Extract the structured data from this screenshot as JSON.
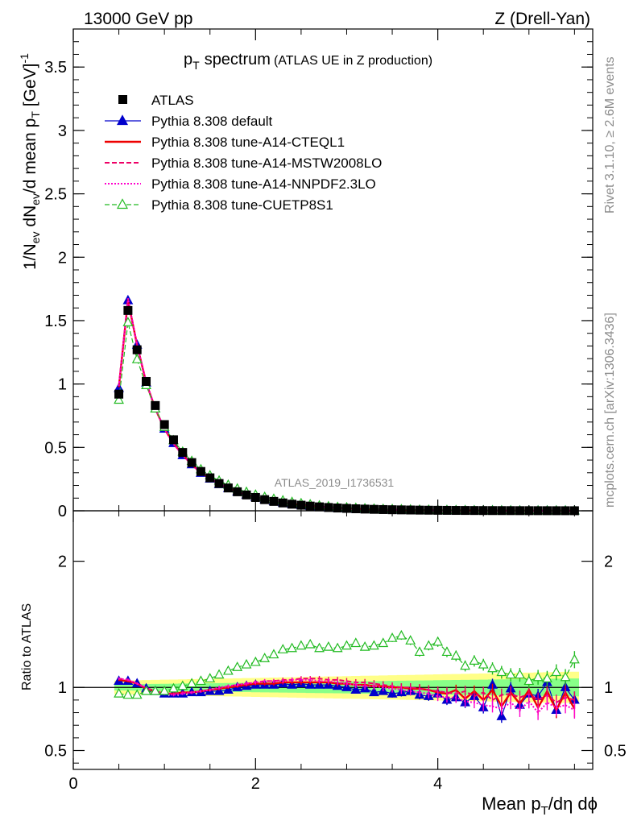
{
  "header": {
    "left": "13000 GeV pp",
    "right": "Z (Drell-Yan)"
  },
  "side": {
    "rivet": "Rivet 3.1.10, ≥ 2.6M events",
    "mcplots": "mcplots.cern.ch [arXiv:1306.3436]"
  },
  "watermark": "ATLAS_2019_I1736531",
  "chart_data": {
    "type": "line",
    "title_main": "p",
    "title_sub": "T",
    "title_word": "spectrum",
    "title_detail": "(ATLAS UE in Z production)",
    "xlabel": "Mean p",
    "xlabel_sub": "T",
    "xlabel_rest": "/dη dϕ",
    "ylabel": "1/N",
    "ylabel_sub1": "ev",
    "ylabel_mid": " dN",
    "ylabel_sub2": "ev",
    "ylabel_mid2": "/d mean p",
    "ylabel_sub3": "T",
    "ylabel_unit": " [GeV]",
    "ylabel_sup": "-1",
    "ratio_ylabel": "Ratio to ATLAS",
    "xlim": [
      0,
      5.7
    ],
    "ylim": [
      0,
      3.8
    ],
    "ratio_ylim": [
      0.35,
      2.4
    ],
    "x_ticks": [
      "0",
      "2",
      "4"
    ],
    "y_ticks": [
      "0",
      "0.5",
      "1",
      "1.5",
      "2",
      "2.5",
      "3",
      "3.5"
    ],
    "ratio_ticks": [
      "0.5",
      "1",
      "2"
    ],
    "x": [
      0.5,
      0.6,
      0.7,
      0.8,
      0.9,
      1.0,
      1.1,
      1.2,
      1.3,
      1.4,
      1.5,
      1.6,
      1.7,
      1.8,
      1.9,
      2.0,
      2.1,
      2.2,
      2.3,
      2.4,
      2.5,
      2.6,
      2.7,
      2.8,
      2.9,
      3.0,
      3.1,
      3.2,
      3.3,
      3.4,
      3.5,
      3.6,
      3.7,
      3.8,
      3.9,
      4.0,
      4.1,
      4.2,
      4.3,
      4.4,
      4.5,
      4.6,
      4.7,
      4.8,
      4.9,
      5.0,
      5.1,
      5.2,
      5.3,
      5.4,
      5.5
    ],
    "data": [
      0.92,
      1.58,
      1.27,
      1.02,
      0.83,
      0.68,
      0.56,
      0.46,
      0.38,
      0.31,
      0.26,
      0.215,
      0.18,
      0.15,
      0.125,
      0.105,
      0.088,
      0.074,
      0.062,
      0.052,
      0.044,
      0.037,
      0.031,
      0.026,
      0.022,
      0.019,
      0.016,
      0.0135,
      0.0115,
      0.0098,
      0.0084,
      0.0072,
      0.0062,
      0.0053,
      0.0046,
      0.004,
      0.0035,
      0.003,
      0.0026,
      0.0022,
      0.0019,
      0.0017,
      0.0015,
      0.0013,
      0.0011,
      0.001,
      0.0009,
      0.0008,
      0.0007,
      0.0006,
      0.0005
    ],
    "series": [
      {
        "name": "ATLAS",
        "color": "#000000"
      },
      {
        "name": "Pythia 8.308 default",
        "color": "#0000cc",
        "ratio": [
          1.05,
          1.05,
          1.03,
          0.99,
          0.97,
          0.95,
          0.95,
          0.95,
          0.96,
          0.96,
          0.97,
          0.97,
          0.98,
          1.0,
          1.01,
          1.02,
          1.02,
          1.02,
          1.03,
          1.02,
          1.03,
          1.02,
          1.02,
          1.02,
          1.01,
          1.0,
          0.98,
          0.99,
          0.96,
          0.97,
          0.95,
          0.96,
          0.97,
          0.94,
          0.93,
          0.95,
          0.9,
          0.92,
          0.88,
          0.93,
          0.84,
          1.02,
          0.77,
          0.99,
          0.86,
          0.95,
          0.93,
          1.04,
          0.82,
          1.0,
          0.9
        ]
      },
      {
        "name": "Pythia 8.308 tune-A14-CTEQL1",
        "color": "#ee0000",
        "ratio": [
          1.06,
          1.05,
          1.03,
          0.99,
          0.97,
          0.95,
          0.95,
          0.96,
          0.96,
          0.97,
          0.98,
          0.99,
          1.0,
          1.01,
          1.02,
          1.03,
          1.03,
          1.03,
          1.04,
          1.04,
          1.04,
          1.04,
          1.04,
          1.04,
          1.03,
          1.03,
          1.02,
          1.02,
          1.01,
          1.01,
          1.0,
          1.0,
          0.99,
          0.99,
          0.98,
          0.96,
          0.95,
          0.98,
          0.91,
          0.97,
          0.9,
          0.98,
          0.85,
          0.96,
          0.87,
          0.98,
          0.84,
          0.97,
          0.82,
          0.96,
          0.83
        ]
      },
      {
        "name": "Pythia 8.308 tune-A14-MSTW2008LO",
        "color": "#ee0066",
        "ratio": [
          1.07,
          1.06,
          1.03,
          0.99,
          0.97,
          0.95,
          0.95,
          0.96,
          0.96,
          0.97,
          0.98,
          0.99,
          1.01,
          1.02,
          1.03,
          1.04,
          1.05,
          1.05,
          1.06,
          1.06,
          1.07,
          1.07,
          1.07,
          1.06,
          1.06,
          1.05,
          1.04,
          1.04,
          1.03,
          1.02,
          1.01,
          1.0,
          1.0,
          0.99,
          0.98,
          0.97,
          0.96,
          0.95,
          0.97,
          0.93,
          0.96,
          0.9,
          0.94,
          0.95,
          0.92,
          0.95,
          0.9,
          0.94,
          0.88,
          0.92,
          0.9
        ]
      },
      {
        "name": "Pythia 8.308 tune-A14-NNPDF2.3LO",
        "color": "#ff00cc",
        "ratio": [
          1.07,
          1.06,
          1.03,
          1.0,
          0.97,
          0.95,
          0.94,
          0.95,
          0.96,
          0.97,
          0.98,
          1.0,
          1.01,
          1.02,
          1.03,
          1.04,
          1.05,
          1.05,
          1.05,
          1.06,
          1.06,
          1.06,
          1.05,
          1.05,
          1.04,
          1.03,
          1.02,
          1.01,
          1.01,
          1.0,
          0.99,
          0.98,
          0.97,
          0.96,
          0.95,
          0.93,
          0.92,
          0.92,
          0.89,
          0.88,
          0.86,
          0.85,
          0.83,
          0.88,
          0.82,
          0.89,
          0.8,
          0.88,
          0.84,
          0.86,
          0.82
        ]
      },
      {
        "name": "Pythia 8.308 tune-CUETP8S1",
        "color": "#22bb22",
        "ratio": [
          0.95,
          0.94,
          0.94,
          0.97,
          0.97,
          0.97,
          0.99,
          1.01,
          1.03,
          1.05,
          1.07,
          1.1,
          1.13,
          1.16,
          1.18,
          1.2,
          1.23,
          1.26,
          1.3,
          1.31,
          1.33,
          1.34,
          1.31,
          1.32,
          1.31,
          1.33,
          1.35,
          1.32,
          1.33,
          1.35,
          1.39,
          1.41,
          1.37,
          1.28,
          1.33,
          1.36,
          1.28,
          1.25,
          1.17,
          1.21,
          1.18,
          1.15,
          1.12,
          1.1,
          1.1,
          1.05,
          1.08,
          1.07,
          1.12,
          1.08,
          1.22
        ]
      }
    ],
    "data_band_inner": 0.04,
    "data_band_outer": 0.09,
    "legend_position": "top-left"
  }
}
